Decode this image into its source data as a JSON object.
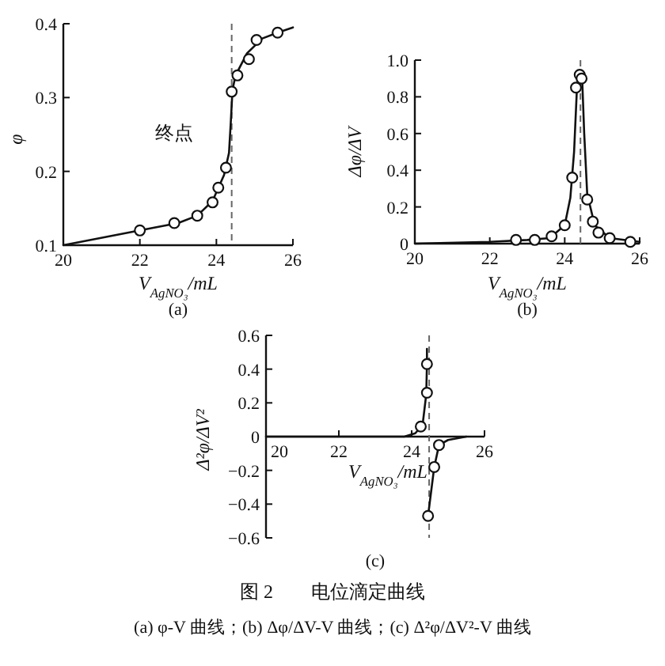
{
  "chart_data": [
    {
      "type": "line",
      "subtitle": "(a)",
      "xlabel": "V$_{AgNO₃}$/mL",
      "ylabel": "φ",
      "xlim": [
        20,
        26
      ],
      "ylim": [
        0.1,
        0.4
      ],
      "xticks": [
        20,
        22,
        24,
        26
      ],
      "yticks": [
        0.1,
        0.2,
        0.3,
        0.4
      ],
      "annotations": [
        "终点"
      ],
      "ref_lines": [
        {
          "axis": "x",
          "value": 24.4,
          "color": "#666666",
          "line_style": "dashed"
        }
      ],
      "series": [
        {
          "type": "line",
          "color": "#111111",
          "marker": "none",
          "x": [
            20,
            22,
            23,
            23.5,
            23.9,
            24.2,
            24.33,
            24.38,
            24.42,
            24.5,
            24.8,
            25.2,
            25.6,
            26
          ],
          "values": [
            0.1,
            0.12,
            0.13,
            0.14,
            0.16,
            0.195,
            0.225,
            0.27,
            0.31,
            0.33,
            0.36,
            0.38,
            0.388,
            0.395
          ]
        },
        {
          "type": "scatter",
          "color": "#111111",
          "marker": "circle",
          "x": [
            22,
            22.9,
            23.5,
            23.9,
            24.05,
            24.25,
            24.4,
            24.55,
            24.85,
            25.05,
            25.6
          ],
          "values": [
            0.12,
            0.13,
            0.14,
            0.158,
            0.178,
            0.205,
            0.308,
            0.33,
            0.352,
            0.378,
            0.388
          ]
        }
      ]
    },
    {
      "type": "line",
      "subtitle": "(b)",
      "xlabel": "V$_{AgNO₃}$/mL",
      "ylabel": "Δφ/ΔV",
      "xlim": [
        20,
        26
      ],
      "ylim": [
        0,
        1.0
      ],
      "xticks": [
        20,
        22,
        24,
        26
      ],
      "yticks": [
        0,
        0.2,
        0.4,
        0.6,
        0.8,
        {
          "value": 1.0,
          "label": "1.0"
        }
      ],
      "ref_lines": [
        {
          "axis": "x",
          "value": 24.42,
          "color": "#666666",
          "line_style": "dashed"
        }
      ],
      "series": [
        {
          "type": "line",
          "color": "#111111",
          "marker": "none",
          "x": [
            20,
            22,
            23,
            23.6,
            24,
            24.15,
            24.25,
            24.32,
            24.37,
            24.46,
            24.52,
            24.6,
            24.8,
            25.2,
            26
          ],
          "values": [
            0,
            0.01,
            0.02,
            0.03,
            0.1,
            0.25,
            0.5,
            0.82,
            0.93,
            0.93,
            0.6,
            0.27,
            0.1,
            0.03,
            0.01
          ]
        },
        {
          "type": "scatter",
          "color": "#111111",
          "marker": "circle",
          "x": [
            22.7,
            23.2,
            23.65,
            24,
            24.2,
            24.3,
            24.4,
            24.45,
            24.6,
            24.75,
            24.9,
            25.2,
            25.75
          ],
          "values": [
            0.02,
            0.02,
            0.04,
            0.1,
            0.36,
            0.85,
            0.92,
            0.9,
            0.24,
            0.12,
            0.06,
            0.03,
            0.01
          ]
        }
      ]
    },
    {
      "type": "line",
      "subtitle": "(c)",
      "xlabel": "V$_{AgNO₃}$/mL",
      "ylabel": "Δ²φ/ΔV²",
      "xlim": [
        20,
        26
      ],
      "ylim": [
        -0.6,
        0.6
      ],
      "xticks": [
        20,
        22,
        24,
        26
      ],
      "yticks": [
        -0.6,
        -0.4,
        -0.2,
        0,
        0.2,
        0.4,
        0.6
      ],
      "ref_lines": [
        {
          "axis": "x",
          "value": 24.48,
          "color": "#666666",
          "line_style": "dashed"
        }
      ],
      "series": [
        {
          "type": "line",
          "color": "#111111",
          "marker": "none",
          "x": [
            20,
            23.8,
            24.1,
            24.3,
            24.4,
            24.42,
            24.42
          ],
          "values": [
            0,
            0,
            0.02,
            0.07,
            0.25,
            0.43,
            0.52
          ]
        },
        {
          "type": "line",
          "color": "#111111",
          "marker": "none",
          "x": [
            24.45,
            24.62,
            24.75,
            25,
            25.5
          ],
          "values": [
            -0.47,
            -0.18,
            -0.05,
            -0.02,
            0
          ]
        },
        {
          "type": "scatter",
          "color": "#111111",
          "marker": "circle",
          "x": [
            24.25,
            24.42,
            24.42,
            24.45,
            24.62,
            24.75
          ],
          "values": [
            0.06,
            0.26,
            0.43,
            -0.47,
            -0.18,
            -0.05
          ]
        }
      ]
    },
    {
      "type": "other",
      "title": "图 2　　电位滴定曲线",
      "annotations": [
        "(a) φ-V 曲线；(b) Δφ/ΔV-V 曲线；(c) Δ²φ/ΔV²-V 曲线"
      ]
    }
  ]
}
